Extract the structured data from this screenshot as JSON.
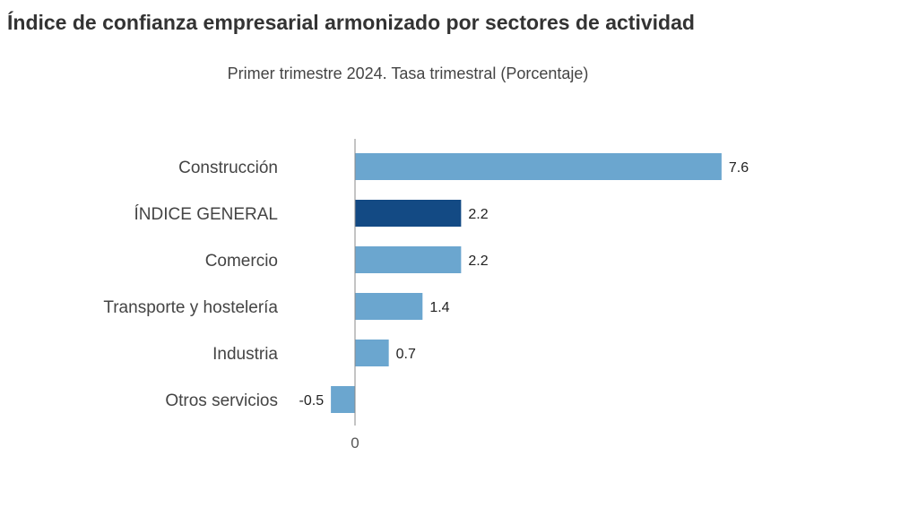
{
  "title": "Índice de confianza empresarial armonizado por sectores de actividad",
  "subtitle": "Primer trimestre 2024. Tasa trimestral (Porcentaje)",
  "colors": {
    "default": "#6ba6cf",
    "highlight": "#134a84"
  },
  "chart_data": {
    "type": "bar",
    "orientation": "horizontal",
    "title": "Índice de confianza empresarial armonizado por sectores de actividad",
    "subtitle": "Primer trimestre 2024. Tasa trimestral (Porcentaje)",
    "categories": [
      "Construcción",
      "ÍNDICE GENERAL",
      "Comercio",
      "Transporte y hostelería",
      "Industria",
      "Otros servicios"
    ],
    "values": [
      7.6,
      2.2,
      2.2,
      1.4,
      0.7,
      -0.5
    ],
    "value_labels": [
      "7.6",
      "2.2",
      "2.2",
      "1.4",
      "0.7",
      "-0.5"
    ],
    "highlight": [
      "ÍNDICE GENERAL"
    ],
    "x_ticks": [
      "0"
    ],
    "grid": false,
    "legend": "none"
  }
}
